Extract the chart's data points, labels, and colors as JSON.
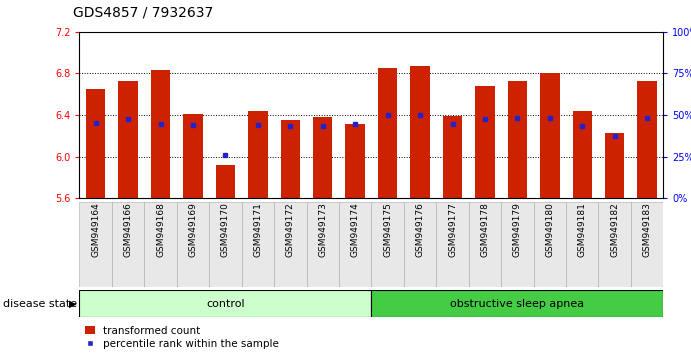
{
  "title": "GDS4857 / 7932637",
  "samples": [
    "GSM949164",
    "GSM949166",
    "GSM949168",
    "GSM949169",
    "GSM949170",
    "GSM949171",
    "GSM949172",
    "GSM949173",
    "GSM949174",
    "GSM949175",
    "GSM949176",
    "GSM949177",
    "GSM949178",
    "GSM949179",
    "GSM949180",
    "GSM949181",
    "GSM949182",
    "GSM949183"
  ],
  "red_values": [
    6.65,
    6.73,
    6.83,
    6.41,
    5.92,
    6.44,
    6.35,
    6.38,
    6.31,
    6.85,
    6.87,
    6.39,
    6.68,
    6.73,
    6.8,
    6.44,
    6.23,
    6.73
  ],
  "blue_values": [
    6.32,
    6.36,
    6.31,
    6.3,
    6.02,
    6.3,
    6.29,
    6.29,
    6.31,
    6.4,
    6.4,
    6.31,
    6.36,
    6.37,
    6.37,
    6.29,
    6.2,
    6.37
  ],
  "ylim_left": [
    5.6,
    7.2
  ],
  "yticks_left": [
    5.6,
    6.0,
    6.4,
    6.8,
    7.2
  ],
  "yticks_right": [
    0,
    25,
    50,
    75,
    100
  ],
  "bar_color": "#cc2200",
  "dot_color": "#2222cc",
  "baseline": 5.6,
  "control_count": 9,
  "control_label": "control",
  "disease_label": "obstructive sleep apnea",
  "control_bg": "#ccffcc",
  "disease_bg": "#44cc44",
  "disease_state_label": "disease state",
  "legend1": "transformed count",
  "legend2": "percentile rank within the sample",
  "fig_bg": "#ffffff",
  "title_fontsize": 10,
  "tick_fontsize": 7,
  "xlabel_fontsize": 6.5,
  "band_fontsize": 8,
  "legend_fontsize": 7.5
}
